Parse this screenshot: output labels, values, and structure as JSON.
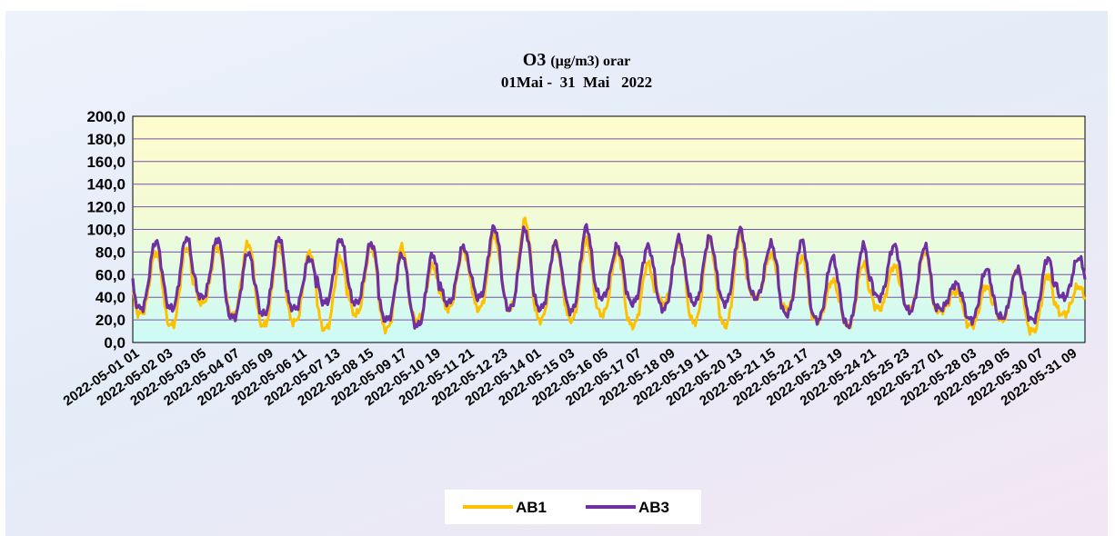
{
  "chart_data": {
    "type": "line",
    "title": "O3",
    "title_unit": "(µg/m3) orar",
    "subtitle": "01Mai -  31  Mai   2022",
    "xlabel": "",
    "ylabel": "",
    "ylim": [
      0,
      200
    ],
    "yticks": [
      "0,0",
      "20,0",
      "40,0",
      "60,0",
      "80,0",
      "100,0",
      "120,0",
      "140,0",
      "160,0",
      "180,0",
      "200,0"
    ],
    "grid": true,
    "legend_position": "bottom",
    "x_tick_labels": [
      "2022-05-01 01",
      "2022-05-02 03",
      "2022-05-03 05",
      "2022-05-04 07",
      "2022-05-05 09",
      "2022-05-06 11",
      "2022-05-07 13",
      "2022-05-08 15",
      "2022-05-09 17",
      "2022-05-10 19",
      "2022-05-11 21",
      "2022-05-12 23",
      "2022-05-14 01",
      "2022-05-15 03",
      "2022-05-16 05",
      "2022-05-17 07",
      "2022-05-18 09",
      "2022-05-19 11",
      "2022-05-20 13",
      "2022-05-21 15",
      "2022-05-22 17",
      "2022-05-23 19",
      "2022-05-24 21",
      "2022-05-25 23",
      "2022-05-27 01",
      "2022-05-28 03",
      "2022-05-29 05",
      "2022-05-30 07",
      "2022-05-31 09"
    ],
    "x": [
      "2022-05-01",
      "2022-05-02",
      "2022-05-03",
      "2022-05-04",
      "2022-05-05",
      "2022-05-06",
      "2022-05-07",
      "2022-05-08",
      "2022-05-09",
      "2022-05-10",
      "2022-05-11",
      "2022-05-12",
      "2022-05-13",
      "2022-05-14",
      "2022-05-15",
      "2022-05-16",
      "2022-05-17",
      "2022-05-18",
      "2022-05-19",
      "2022-05-20",
      "2022-05-21",
      "2022-05-22",
      "2022-05-23",
      "2022-05-24",
      "2022-05-25",
      "2022-05-26",
      "2022-05-27",
      "2022-05-28",
      "2022-05-29",
      "2022-05-30",
      "2022-05-31"
    ],
    "series": [
      {
        "name": "AB1",
        "color": "#FFC000",
        "daily_min": [
          25,
          15,
          35,
          25,
          15,
          18,
          12,
          25,
          12,
          20,
          30,
          30,
          30,
          20,
          20,
          25,
          15,
          35,
          18,
          15,
          40,
          30,
          20,
          15,
          30,
          30,
          28,
          15,
          20,
          10,
          25
        ],
        "daily_max": [
          80,
          85,
          85,
          88,
          87,
          80,
          75,
          85,
          85,
          68,
          82,
          95,
          108,
          88,
          90,
          80,
          70,
          88,
          92,
          95,
          78,
          75,
          55,
          70,
          68,
          80,
          45,
          50,
          65,
          60,
          50
        ]
      },
      {
        "name": "AB3",
        "color": "#7030A0",
        "daily_min": [
          30,
          30,
          40,
          22,
          25,
          30,
          35,
          35,
          20,
          15,
          35,
          40,
          30,
          30,
          28,
          40,
          35,
          30,
          35,
          35,
          40,
          25,
          20,
          15,
          40,
          28,
          30,
          20,
          22,
          20,
          40
        ],
        "daily_max": [
          90,
          93,
          92,
          80,
          93,
          75,
          92,
          88,
          78,
          78,
          85,
          102,
          100,
          88,
          102,
          85,
          85,
          92,
          93,
          100,
          87,
          90,
          75,
          86,
          86,
          85,
          52,
          65,
          65,
          75,
          75
        ]
      }
    ]
  }
}
